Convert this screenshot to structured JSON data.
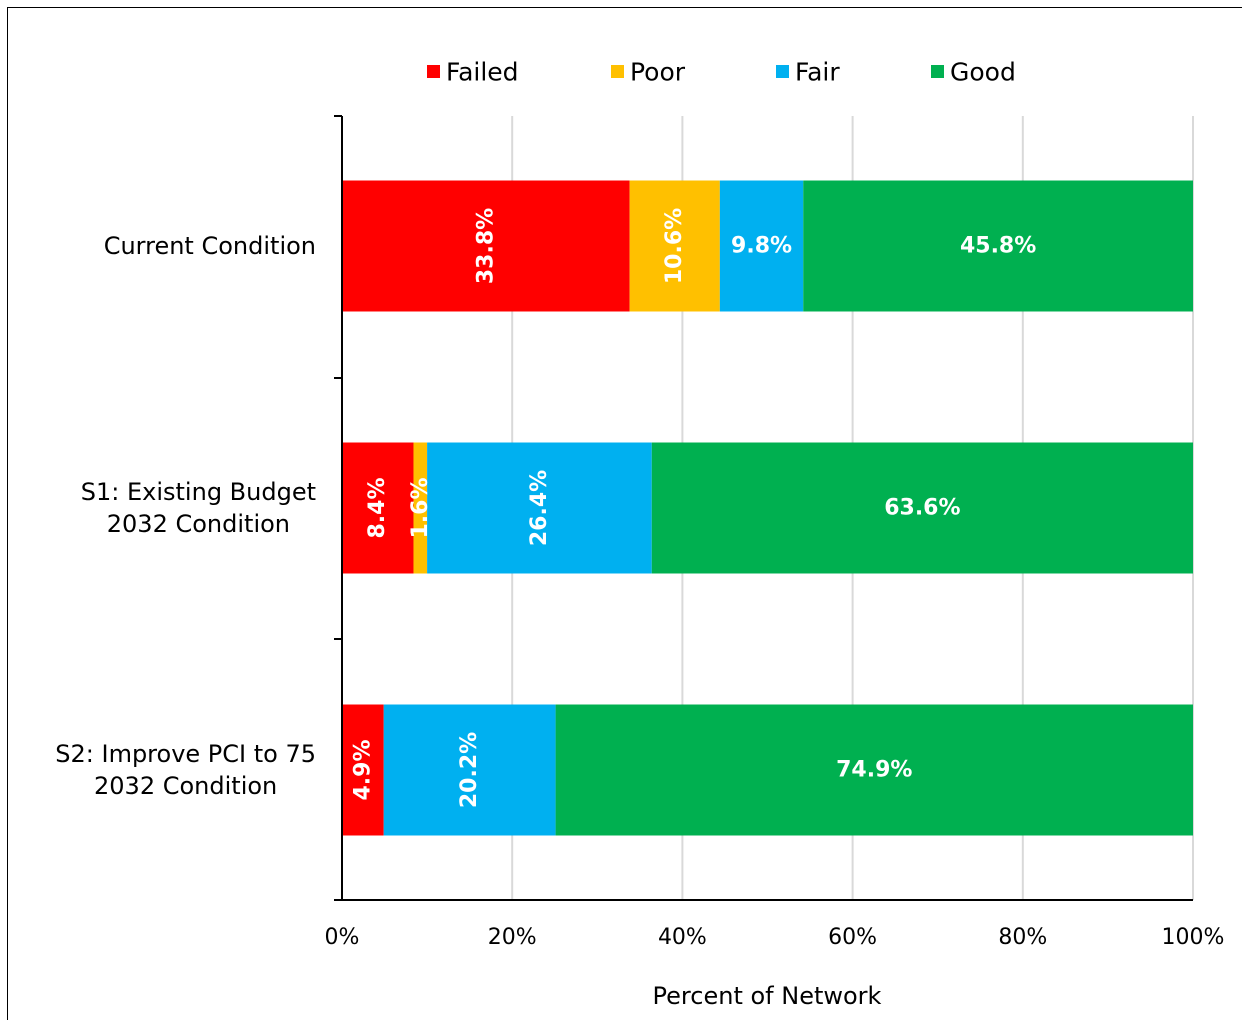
{
  "chart_data": {
    "type": "bar",
    "orientation": "horizontal",
    "stacked": true,
    "title": "",
    "xlabel": "Percent of Network",
    "ylabel": "",
    "xlim": [
      0,
      100
    ],
    "x_ticks": [
      "0%",
      "20%",
      "40%",
      "60%",
      "80%",
      "100%"
    ],
    "grid": true,
    "legend_position": "top",
    "categories": [
      [
        "Current Condition"
      ],
      [
        "S1: Existing Budget",
        "2032 Condition"
      ],
      [
        "S2: Improve PCI to 75",
        "2032 Condition"
      ]
    ],
    "series": [
      {
        "name": "Failed",
        "color": "#ff0000",
        "values": [
          33.8,
          8.4,
          4.9
        ],
        "labels": [
          "33.8%",
          "8.4%",
          "4.9%"
        ]
      },
      {
        "name": "Poor",
        "color": "#ffc000",
        "values": [
          10.6,
          1.6,
          0
        ],
        "labels": [
          "10.6%",
          "1.6%",
          ""
        ]
      },
      {
        "name": "Fair",
        "color": "#00b0f0",
        "values": [
          9.8,
          26.4,
          20.2
        ],
        "labels": [
          "9.8%",
          "26.4%",
          "20.2%"
        ]
      },
      {
        "name": "Good",
        "color": "#00b050",
        "values": [
          45.8,
          63.6,
          74.9
        ],
        "labels": [
          "45.8%",
          "63.6%",
          "74.9%"
        ]
      }
    ],
    "label_orientation": [
      [
        "vertical",
        "vertical",
        "horizontal",
        "horizontal"
      ],
      [
        "vertical",
        "vertical",
        "vertical",
        "horizontal"
      ],
      [
        "vertical",
        "vertical",
        "vertical",
        "horizontal"
      ]
    ]
  }
}
